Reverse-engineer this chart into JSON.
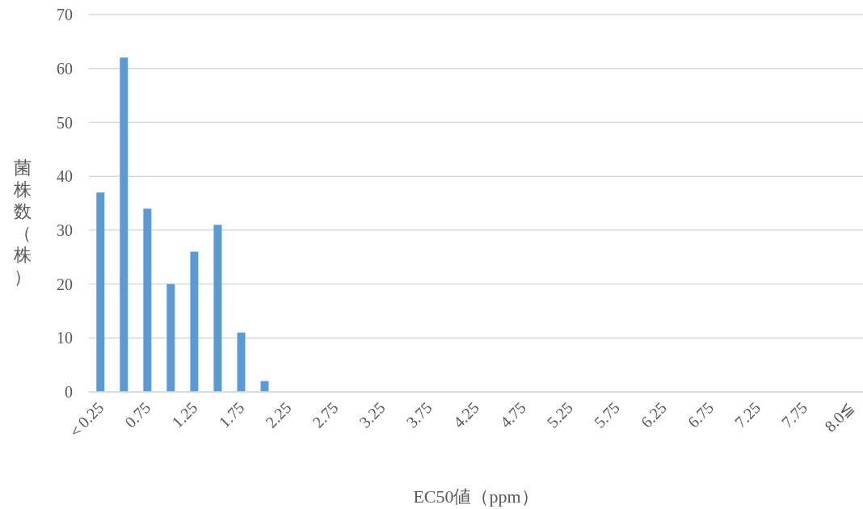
{
  "chart_data": {
    "type": "bar",
    "xlabel": "EC50値（ppm）",
    "ylabel": "菌株数（株）",
    "categories": [
      "＜0.25",
      null,
      "0.75",
      null,
      "1.25",
      null,
      "1.75",
      null,
      "2.25",
      null,
      "2.75",
      null,
      "3.25",
      null,
      "3.75",
      null,
      "4.25",
      null,
      "4.75",
      null,
      "5.25",
      null,
      "5.75",
      null,
      "6.25",
      null,
      "6.75",
      null,
      "7.25",
      null,
      "7.75",
      null,
      "8.0≦"
    ],
    "values": [
      37,
      62,
      34,
      20,
      26,
      31,
      11,
      2,
      0,
      0,
      0,
      0,
      0,
      0,
      0,
      0,
      0,
      0,
      0,
      0,
      0,
      0,
      0,
      0,
      0,
      0,
      0,
      0,
      0,
      0,
      0,
      0,
      0
    ],
    "color": "#5b9bd5",
    "ylim": [
      0,
      70
    ],
    "yticks": [
      0,
      10,
      20,
      30,
      40,
      50,
      60,
      70
    ],
    "grid": "y",
    "legend": false
  }
}
